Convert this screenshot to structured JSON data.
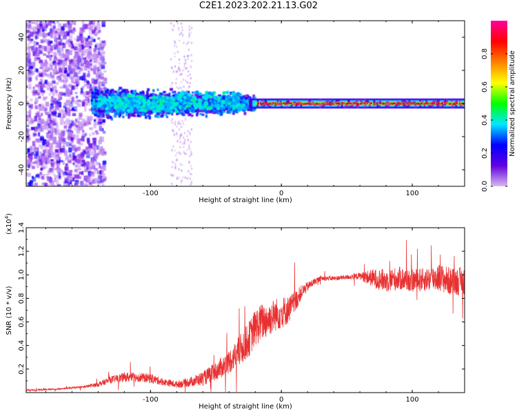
{
  "title": "C2E1.2023.202.21.13.G02",
  "chart_data": [
    {
      "type": "heatmap",
      "title": "C2E1.2023.202.21.13.G02",
      "xlabel": "Height of straight line (km)",
      "ylabel": "Frequency (Hz)",
      "xlim": [
        -195,
        140
      ],
      "ylim": [
        -50,
        50
      ],
      "xticks": [
        -100,
        0,
        100
      ],
      "yticks": [
        -40,
        -20,
        0,
        20,
        40
      ],
      "colorbar": {
        "label": "Normalized spectral amplitude",
        "range": [
          0.0,
          1.0
        ],
        "ticks": [
          "0.0",
          "0.2",
          "0.4",
          "0.6",
          "0.8"
        ],
        "colors": [
          "#d8b8f0",
          "#6000e0",
          "#0000ff",
          "#00e8ff",
          "#00ff00",
          "#ffff00",
          "#ff8000",
          "#ff0000",
          "#ff00a0"
        ]
      },
      "features": [
        {
          "region": "x < -140 km",
          "description_values": {
            "freq_spread_hz": [
              -50,
              50
            ],
            "amplitude": 0.1
          }
        },
        {
          "region": "-140 to -30 km",
          "description_values": {
            "freq_spread_hz": [
              -10,
              10
            ],
            "amplitude": 0.35
          }
        },
        {
          "region": "-20 to 140 km",
          "description_values": {
            "freq_spread_hz": [
              -2,
              2
            ],
            "amplitude": 0.9
          }
        }
      ]
    },
    {
      "type": "line",
      "xlabel": "Height of straight line (km)",
      "ylabel": "SNR (10 * v/v)",
      "y_multiplier": "(x10",
      "y_multiplier_exp": "4",
      "y_multiplier_close": ")",
      "xlim": [
        -195,
        140
      ],
      "ylim": [
        0,
        1.4
      ],
      "xticks": [
        -100,
        0,
        100
      ],
      "yticks": [
        "0.2",
        "0.4",
        "0.6",
        "0.8",
        "1.0",
        "1.2",
        "1.4"
      ],
      "color": "#e83030",
      "series": [
        {
          "x": [
            -195,
            -170,
            -150,
            -140,
            -130,
            -120,
            -110,
            -100,
            -90,
            -80,
            -70,
            -60,
            -50,
            -40,
            -35,
            -30,
            -25,
            -20,
            -15,
            -10,
            -5,
            0,
            5,
            10,
            15,
            20,
            25,
            30,
            40,
            50,
            60,
            70,
            80,
            90,
            100,
            110,
            120,
            130,
            140
          ],
          "y": [
            0.02,
            0.03,
            0.05,
            0.07,
            0.11,
            0.13,
            0.13,
            0.12,
            0.09,
            0.07,
            0.09,
            0.12,
            0.18,
            0.26,
            0.32,
            0.38,
            0.45,
            0.55,
            0.6,
            0.62,
            0.66,
            0.68,
            0.7,
            0.76,
            0.85,
            0.9,
            0.94,
            0.97,
            0.97,
            0.98,
            0.99,
            0.97,
            0.95,
            0.97,
            0.95,
            0.96,
            0.98,
            0.94,
            0.95
          ],
          "noise": [
            0.005,
            0.006,
            0.01,
            0.02,
            0.03,
            0.04,
            0.04,
            0.04,
            0.03,
            0.03,
            0.04,
            0.06,
            0.08,
            0.1,
            0.12,
            0.14,
            0.15,
            0.16,
            0.16,
            0.15,
            0.14,
            0.14,
            0.12,
            0.1,
            0.06,
            0.04,
            0.03,
            0.02,
            0.02,
            0.02,
            0.03,
            0.08,
            0.1,
            0.1,
            0.1,
            0.1,
            0.12,
            0.12,
            0.12
          ]
        }
      ]
    }
  ]
}
